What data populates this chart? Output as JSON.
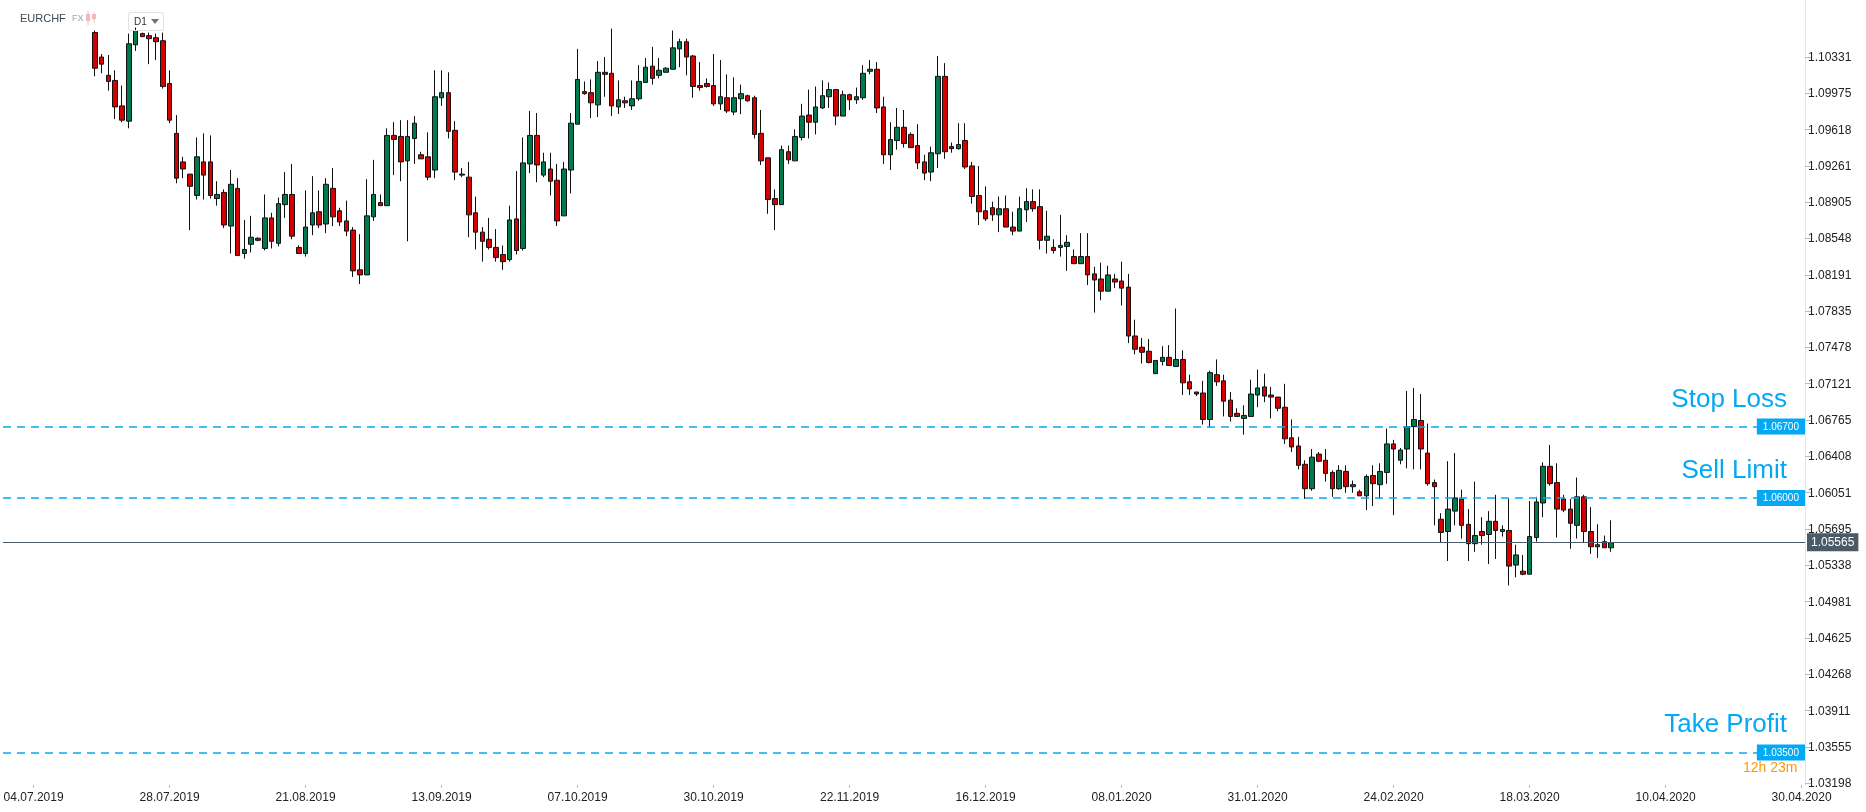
{
  "chart_data": {
    "type": "candlestick",
    "title": "EURCHF",
    "subtitle": "FX",
    "categories": [
      null,
      null,
      null,
      null,
      "04.07.2019",
      null,
      null,
      null,
      null,
      null,
      null,
      null,
      null,
      null,
      null,
      null,
      null,
      null,
      null,
      null,
      null,
      null,
      null,
      null,
      "28.07.2019",
      null,
      null,
      null,
      null,
      null,
      null,
      null,
      null,
      null,
      null,
      null,
      null,
      null,
      null,
      null,
      null,
      null,
      null,
      null,
      "21.08.2019",
      null,
      null,
      null,
      null,
      null,
      null,
      null,
      null,
      null,
      null,
      null,
      null,
      null,
      null,
      null,
      null,
      null,
      null,
      null,
      "13.09.2019",
      null,
      null,
      null,
      null,
      null,
      null,
      null,
      null,
      null,
      null,
      null,
      null,
      null,
      null,
      null,
      null,
      null,
      null,
      null,
      "07.10.2019",
      null,
      null,
      null,
      null,
      null,
      null,
      null,
      null,
      null,
      null,
      null,
      null,
      null,
      null,
      null,
      null,
      null,
      null,
      null,
      "30.10.2019",
      null,
      null,
      null,
      null,
      null,
      null,
      null,
      null,
      null,
      null,
      null,
      null,
      null,
      null,
      null,
      null,
      null,
      null,
      null,
      "22.11.2019",
      null,
      null,
      null,
      null,
      null,
      null,
      null,
      null,
      null,
      null,
      null,
      null,
      null,
      null,
      null,
      null,
      null,
      null,
      null,
      "16.12.2019",
      null,
      null,
      null,
      null,
      null,
      null,
      null,
      null,
      null,
      null,
      null,
      null,
      null,
      null,
      null,
      null,
      null,
      null,
      null,
      "08.01.2020",
      null,
      null,
      null,
      null,
      null,
      null,
      null,
      null,
      null,
      null,
      null,
      null,
      null,
      null,
      null,
      null,
      null,
      null,
      null,
      "31.01.2020",
      null,
      null,
      null,
      null,
      null,
      null,
      null,
      null,
      null,
      null,
      null,
      null,
      null,
      null,
      null,
      null,
      null,
      null,
      null,
      "24.02.2020",
      null,
      null,
      null,
      null,
      null,
      null,
      null,
      null,
      null,
      null,
      null,
      null,
      null,
      null,
      null,
      null,
      null,
      null,
      null,
      "18.03.2020",
      null,
      null,
      null,
      null,
      null,
      null,
      null,
      null,
      null,
      null,
      null,
      null,
      null,
      null,
      null,
      null,
      null,
      null,
      null,
      "10.04.2020",
      null,
      null,
      null,
      null,
      null,
      null,
      null,
      null,
      null,
      null,
      null,
      null,
      null,
      null,
      null,
      null,
      null,
      null,
      null,
      "30.04.2020"
    ],
    "ohlc": [
      null,
      null,
      null,
      null,
      null,
      null,
      null,
      null,
      null,
      null,
      null,
      null,
      null,
      [
        1.1057,
        1.1059,
        1.1014,
        1.1022
      ],
      [
        1.1033,
        1.1036,
        1.1017,
        1.1026
      ],
      [
        1.1015,
        1.1035,
        1.1,
        1.1009
      ],
      [
        1.101,
        1.102,
        1.0972,
        1.0984
      ],
      [
        1.0985,
        1.1005,
        1.0969,
        1.0971
      ],
      [
        1.097,
        1.1056,
        1.0963,
        1.1046
      ],
      [
        1.1045,
        1.1062,
        1.1039,
        1.1059
      ],
      [
        1.1056,
        1.1057,
        1.1053,
        1.1053
      ],
      [
        1.1054,
        1.1057,
        1.1026,
        1.1051
      ],
      [
        1.1052,
        1.1056,
        1.103,
        1.1048
      ],
      [
        1.1049,
        1.1057,
        1.1002,
        1.1004
      ],
      [
        1.1007,
        1.102,
        1.0968,
        1.0971
      ],
      [
        1.0958,
        1.0976,
        1.0909,
        1.0914
      ],
      [
        1.093,
        1.0935,
        1.0914,
        1.0923
      ],
      [
        1.0918,
        1.0918,
        1.0863,
        1.0906
      ],
      [
        1.0897,
        1.0954,
        1.0893,
        1.0935
      ],
      [
        1.093,
        1.0958,
        1.0893,
        1.0917
      ],
      [
        1.093,
        1.0956,
        1.0894,
        1.0897
      ],
      [
        1.0894,
        1.0911,
        1.0887,
        1.0898
      ],
      [
        1.09,
        1.0903,
        1.0865,
        1.0868
      ],
      [
        1.0867,
        1.0922,
        1.084,
        1.0908
      ],
      [
        1.0904,
        1.0914,
        1.0838,
        1.0838
      ],
      [
        1.084,
        1.0873,
        1.0835,
        1.0844
      ],
      [
        1.0849,
        1.0877,
        1.0841,
        1.0856
      ],
      [
        1.0855,
        1.0856,
        1.0852,
        1.0853
      ],
      [
        1.0845,
        1.0898,
        1.0843,
        1.0875
      ],
      [
        1.0875,
        1.088,
        1.0845,
        1.0852
      ],
      [
        1.085,
        1.0895,
        1.0847,
        1.0889
      ],
      [
        1.0888,
        1.092,
        1.0875,
        1.0898
      ],
      [
        1.0898,
        1.0928,
        1.0854,
        1.0857
      ],
      [
        1.0846,
        1.0848,
        1.084,
        1.084
      ],
      [
        1.084,
        1.0902,
        1.0837,
        1.0866
      ],
      [
        1.0868,
        1.0916,
        1.0858,
        1.088
      ],
      [
        1.0881,
        1.0902,
        1.0865,
        1.0868
      ],
      [
        1.0869,
        1.0914,
        1.086,
        1.0908
      ],
      [
        1.0904,
        1.0924,
        1.0867,
        1.0876
      ],
      [
        1.0882,
        1.0885,
        1.0867,
        1.0871
      ],
      [
        1.0872,
        1.0892,
        1.0857,
        1.0862
      ],
      [
        1.0863,
        1.0866,
        1.0817,
        1.0823
      ],
      [
        1.0824,
        1.0859,
        1.081,
        1.0819
      ],
      [
        1.0819,
        1.0913,
        1.0819,
        1.0877
      ],
      [
        1.0876,
        1.0932,
        1.0872,
        1.0898
      ],
      [
        1.089,
        1.0898,
        1.0887,
        1.0887
      ],
      [
        1.0887,
        1.0963,
        1.0887,
        1.0956
      ],
      [
        1.0956,
        1.0969,
        1.0917,
        1.0952
      ],
      [
        1.0955,
        1.0971,
        1.0911,
        1.093
      ],
      [
        1.0931,
        1.0971,
        1.0852,
        1.0955
      ],
      [
        1.0953,
        1.0975,
        1.0928,
        1.0968
      ],
      [
        1.0937,
        1.094,
        1.0933,
        1.0933
      ],
      [
        1.0935,
        1.0959,
        1.0912,
        1.0915
      ],
      [
        1.0922,
        1.102,
        1.0914,
        1.0994
      ],
      [
        1.0993,
        1.102,
        1.0985,
        1.0998
      ],
      [
        1.0998,
        1.1018,
        1.0953,
        1.096
      ],
      [
        1.0961,
        1.097,
        1.0912,
        1.092
      ],
      [
        1.0917,
        1.0924,
        1.0915,
        1.0918
      ],
      [
        1.0915,
        1.093,
        1.0856,
        1.0878
      ],
      [
        1.088,
        1.0896,
        1.0844,
        1.0861
      ],
      [
        1.0861,
        1.0866,
        1.0832,
        1.0852
      ],
      [
        1.0854,
        1.0875,
        1.0844,
        1.0846
      ],
      [
        1.0846,
        1.0864,
        1.0832,
        1.0836
      ],
      [
        1.0839,
        1.0848,
        1.0824,
        1.0832
      ],
      [
        1.0834,
        1.0887,
        1.0832,
        1.0873
      ],
      [
        1.0874,
        1.0921,
        1.0839,
        1.0843
      ],
      [
        1.0845,
        1.0954,
        1.0843,
        1.0929
      ],
      [
        1.0928,
        1.098,
        1.0919,
        1.0956
      ],
      [
        1.0956,
        1.0978,
        1.091,
        1.0927
      ],
      [
        1.0917,
        1.0939,
        1.0915,
        1.093
      ],
      [
        1.0923,
        1.0939,
        1.0897,
        1.0911
      ],
      [
        1.0912,
        1.0928,
        1.0867,
        1.0872
      ],
      [
        1.0877,
        1.093,
        1.0877,
        1.0923
      ],
      [
        1.0922,
        1.0978,
        1.0899,
        1.0968
      ],
      [
        1.0967,
        1.1041,
        1.0967,
        1.1011
      ],
      [
        1.0999,
        1.1009,
        1.0996,
        1.0997
      ],
      [
        1.0998,
        1.1011,
        1.0973,
        1.0988
      ],
      [
        1.0986,
        1.1029,
        1.0974,
        1.1018
      ],
      [
        1.1018,
        1.1033,
        1.0994,
        1.1016
      ],
      [
        1.1017,
        1.1061,
        1.0975,
        1.0985
      ],
      [
        1.0984,
        1.101,
        1.0977,
        1.0991
      ],
      [
        1.099,
        1.0994,
        1.0983,
        1.0988
      ],
      [
        1.0985,
        1.101,
        1.0981,
        1.0992
      ],
      [
        1.0992,
        1.1025,
        1.099,
        1.1009
      ],
      [
        1.1008,
        1.1032,
        1.1008,
        1.1023
      ],
      [
        1.1024,
        1.1043,
        1.1006,
        1.1012
      ],
      [
        1.1015,
        1.1032,
        1.1012,
        1.102
      ],
      [
        1.1018,
        1.1023,
        1.1018,
        1.1022
      ],
      [
        1.1021,
        1.1059,
        1.1021,
        1.1042
      ],
      [
        1.1041,
        1.1051,
        1.1023,
        1.1048
      ],
      [
        1.1048,
        1.1051,
        1.1015,
        1.1033
      ],
      [
        1.1034,
        1.1035,
        1.0993,
        1.1004
      ],
      [
        1.1005,
        1.1028,
        1.1,
        1.1003
      ],
      [
        1.1007,
        1.1012,
        1.1003,
        1.1004
      ],
      [
        1.1005,
        1.1036,
        1.0985,
        1.0987
      ],
      [
        1.0987,
        1.103,
        1.0981,
        1.0994
      ],
      [
        1.0993,
        1.1016,
        1.0978,
        1.098
      ],
      [
        1.0979,
        1.1013,
        1.0976,
        1.0993
      ],
      [
        1.0992,
        1.1006,
        1.0977,
        1.0997
      ],
      [
        1.0995,
        1.0996,
        1.0989,
        1.099
      ],
      [
        1.0993,
        1.0995,
        1.0953,
        1.0957
      ],
      [
        1.0958,
        1.0981,
        1.0927,
        1.0931
      ],
      [
        1.0934,
        1.0934,
        1.0879,
        1.0893
      ],
      [
        1.0894,
        1.0903,
        1.0863,
        1.0888
      ],
      [
        1.0888,
        1.0946,
        1.0888,
        1.0942
      ],
      [
        1.094,
        1.0946,
        1.0928,
        1.0932
      ],
      [
        1.0931,
        1.0962,
        1.0931,
        1.0955
      ],
      [
        1.0954,
        1.0987,
        1.0951,
        1.0975
      ],
      [
        1.0976,
        1.1001,
        1.0953,
        1.0969
      ],
      [
        1.0969,
        1.1004,
        1.0957,
        1.0984
      ],
      [
        1.0983,
        1.101,
        1.0982,
        1.0995
      ],
      [
        1.0994,
        1.1008,
        1.0983,
        1.1001
      ],
      [
        1.1001,
        1.1001,
        1.0966,
        1.0975
      ],
      [
        1.0975,
        1.1,
        1.0975,
        1.0996
      ],
      [
        1.0996,
        1.0997,
        1.0981,
        1.0991
      ],
      [
        1.0991,
        1.1003,
        1.0987,
        1.0994
      ],
      [
        1.0993,
        1.1025,
        1.0991,
        1.1017
      ],
      [
        1.1019,
        1.103,
        1.1016,
        1.1021
      ],
      [
        1.1021,
        1.1028,
        1.0978,
        1.0983
      ],
      [
        1.0984,
        1.0994,
        1.0928,
        1.0937
      ],
      [
        1.0937,
        1.0969,
        1.0922,
        1.0952
      ],
      [
        1.0951,
        1.0983,
        1.0942,
        1.0964
      ],
      [
        1.0964,
        1.0981,
        1.0944,
        1.0948
      ],
      [
        1.0957,
        1.0959,
        1.0944,
        1.0944
      ],
      [
        1.0946,
        1.0967,
        1.0923,
        1.0929
      ],
      [
        1.093,
        1.0937,
        1.0912,
        1.0919
      ],
      [
        1.092,
        1.0945,
        1.0911,
        1.0939
      ],
      [
        1.0938,
        1.1034,
        1.0924,
        1.1014
      ],
      [
        1.1014,
        1.1027,
        1.0933,
        1.094
      ],
      [
        1.0945,
        1.0949,
        1.0939,
        1.0943
      ],
      [
        1.0943,
        1.0968,
        1.0942,
        1.0947
      ],
      [
        1.0951,
        1.0968,
        1.0923,
        1.0925
      ],
      [
        1.0926,
        1.093,
        1.0889,
        1.0896
      ],
      [
        1.0897,
        1.0926,
        1.0868,
        1.0881
      ],
      [
        1.0882,
        1.0906,
        1.0872,
        1.0874
      ],
      [
        1.0885,
        1.0891,
        1.0872,
        1.0878
      ],
      [
        1.0878,
        1.0896,
        1.0861,
        1.0884
      ],
      [
        1.0884,
        1.0897,
        1.0866,
        1.0866
      ],
      [
        1.0866,
        1.0881,
        1.0858,
        1.0862
      ],
      [
        1.0862,
        1.0896,
        1.0862,
        1.0884
      ],
      [
        1.0883,
        1.0904,
        1.0871,
        1.0891
      ],
      [
        1.0891,
        1.0903,
        1.0881,
        1.0884
      ],
      [
        1.0886,
        1.0903,
        1.0844,
        1.0853
      ],
      [
        1.0853,
        1.0882,
        1.084,
        1.0857
      ],
      [
        1.0846,
        1.0854,
        1.084,
        1.0843
      ],
      [
        1.0846,
        1.0878,
        1.0837,
        1.0848
      ],
      [
        1.0847,
        1.0858,
        1.0823,
        1.0851
      ],
      [
        1.0837,
        1.0844,
        1.083,
        1.083
      ],
      [
        1.083,
        1.086,
        1.083,
        1.0837
      ],
      [
        1.0837,
        1.086,
        1.0809,
        1.0819
      ],
      [
        1.082,
        1.0827,
        1.0782,
        1.0814
      ],
      [
        1.0815,
        1.0831,
        1.0794,
        1.0803
      ],
      [
        1.0803,
        1.0828,
        1.0803,
        1.0819
      ],
      [
        1.0815,
        1.082,
        1.0806,
        1.0812
      ],
      [
        1.0813,
        1.0832,
        1.0789,
        1.0806
      ],
      [
        1.0807,
        1.082,
        1.0752,
        1.0759
      ],
      [
        1.0759,
        1.0775,
        1.0741,
        1.0746
      ],
      [
        1.0748,
        1.0757,
        1.0732,
        1.0743
      ],
      [
        1.0744,
        1.0756,
        1.0732,
        1.0733
      ],
      [
        1.0722,
        1.0735,
        1.0722,
        1.0735
      ],
      [
        1.0734,
        1.0749,
        1.073,
        1.0738
      ],
      [
        1.0738,
        1.075,
        1.073,
        1.073
      ],
      [
        1.0729,
        1.0786,
        1.0729,
        1.0736
      ],
      [
        1.0736,
        1.0745,
        1.0701,
        1.0713
      ],
      [
        1.0714,
        1.0721,
        1.0701,
        1.0707
      ],
      [
        1.0704,
        1.0704,
        1.07,
        1.0702
      ],
      [
        1.0703,
        1.0715,
        1.0672,
        1.0677
      ],
      [
        1.0677,
        1.0725,
        1.0669,
        1.0723
      ],
      [
        1.0721,
        1.0736,
        1.071,
        1.0714
      ],
      [
        1.0715,
        1.0721,
        1.068,
        1.0695
      ],
      [
        1.0696,
        1.0704,
        1.0675,
        1.068
      ],
      [
        1.0683,
        1.0688,
        1.068,
        1.068
      ],
      [
        1.0678,
        1.0691,
        1.0662,
        1.0681
      ],
      [
        1.068,
        1.0716,
        1.068,
        1.0702
      ],
      [
        1.0701,
        1.0726,
        1.0689,
        1.0708
      ],
      [
        1.0709,
        1.0722,
        1.0694,
        1.07
      ],
      [
        1.0701,
        1.0709,
        1.0678,
        1.0699
      ],
      [
        1.0699,
        1.0699,
        1.0685,
        1.0688
      ],
      [
        1.0689,
        1.0712,
        1.0653,
        1.0658
      ],
      [
        1.0659,
        1.0677,
        1.0645,
        1.065
      ],
      [
        1.0651,
        1.066,
        1.0628,
        1.0632
      ],
      [
        1.0633,
        1.0637,
        1.0599,
        1.0609
      ],
      [
        1.0609,
        1.0648,
        1.0607,
        1.064
      ],
      [
        1.0643,
        1.0645,
        1.0635,
        1.0636
      ],
      [
        1.0637,
        1.0648,
        1.0616,
        1.0624
      ],
      [
        1.0625,
        1.0627,
        1.0601,
        1.0609
      ],
      [
        1.0609,
        1.0632,
        1.0608,
        1.0627
      ],
      [
        1.0626,
        1.0632,
        1.0605,
        1.0611
      ],
      [
        1.0611,
        1.0617,
        1.0605,
        1.0613
      ],
      [
        1.0606,
        1.0608,
        1.0602,
        1.0602
      ],
      [
        1.0602,
        1.0623,
        1.0588,
        1.0621
      ],
      [
        1.0622,
        1.0632,
        1.0592,
        1.0614
      ],
      [
        1.0613,
        1.0634,
        1.0599,
        1.0626
      ],
      [
        1.0625,
        1.0668,
        1.0614,
        1.0653
      ],
      [
        1.0653,
        1.0657,
        1.0583,
        1.0648
      ],
      [
        1.0637,
        1.0649,
        1.0633,
        1.0647
      ],
      [
        1.0648,
        1.0705,
        1.0629,
        1.067
      ],
      [
        1.067,
        1.0708,
        1.0628,
        1.0677
      ],
      [
        1.0676,
        1.0702,
        1.0628,
        1.0648
      ],
      [
        1.0644,
        1.0673,
        1.0612,
        1.0614
      ],
      [
        1.0615,
        1.0618,
        1.0573,
        1.0611
      ],
      [
        1.0579,
        1.0585,
        1.0556,
        1.0566
      ],
      [
        1.0567,
        1.0636,
        1.0538,
        1.0589
      ],
      [
        1.0587,
        1.0644,
        1.0573,
        1.06
      ],
      [
        1.0599,
        1.0608,
        1.056,
        1.0573
      ],
      [
        1.0574,
        1.0589,
        1.0538,
        1.0555
      ],
      [
        1.0555,
        1.0616,
        1.0547,
        1.0563
      ],
      [
        1.0567,
        1.0581,
        1.0554,
        1.0563
      ],
      [
        1.0564,
        1.0587,
        1.0535,
        1.0577
      ],
      [
        1.0577,
        1.0603,
        1.054,
        1.0568
      ],
      [
        1.0567,
        1.0573,
        1.0562,
        1.0569
      ],
      [
        1.0568,
        1.0599,
        1.0514,
        1.0533
      ],
      [
        1.0534,
        1.0554,
        1.0522,
        1.0544
      ],
      [
        1.0528,
        1.0544,
        1.0524,
        1.0525
      ],
      [
        1.0525,
        1.0597,
        1.0525,
        1.0562
      ],
      [
        1.0561,
        1.0601,
        1.0557,
        1.0596
      ],
      [
        1.0595,
        1.0635,
        1.0581,
        1.0631
      ],
      [
        1.0631,
        1.0652,
        1.0612,
        1.0614
      ],
      [
        1.0615,
        1.0634,
        1.0561,
        1.0589
      ],
      [
        1.0599,
        1.0603,
        1.0586,
        1.0588
      ],
      [
        1.0589,
        1.0599,
        1.055,
        1.0575
      ],
      [
        1.0573,
        1.062,
        1.056,
        1.0601
      ],
      [
        1.0601,
        1.0603,
        1.0556,
        1.0567
      ],
      [
        1.0567,
        1.0591,
        1.0545,
        1.0552
      ],
      [
        1.0552,
        1.0574,
        1.0541,
        1.0554
      ],
      [
        1.0557,
        1.0563,
        1.0551,
        1.0551
      ],
      [
        1.0551,
        1.0578,
        1.0547,
        1.0556
      ],
      null,
      null,
      null,
      null,
      null,
      null,
      null,
      null,
      null,
      null,
      null,
      null,
      null,
      null,
      null,
      null,
      null,
      null,
      null,
      null,
      null,
      null,
      null,
      null,
      null,
      null,
      null,
      null
    ],
    "ylim": [
      1.0318,
      1.1089
    ],
    "yticks": [
      1.10331,
      1.09975,
      1.09618,
      1.09261,
      1.08905,
      1.08548,
      1.08191,
      1.07835,
      1.07478,
      1.07121,
      1.06765,
      1.06408,
      1.06051,
      1.05695,
      1.05338,
      1.04981,
      1.04625,
      1.04268,
      1.03911,
      1.03555,
      1.03198
    ],
    "grid": false,
    "ref_lines": [
      {
        "axis": "y",
        "value": 1.067,
        "label": "1.06700",
        "color": "#03a9f4",
        "line_style": "dashed"
      },
      {
        "axis": "y",
        "value": 1.06,
        "label": "1.06000",
        "color": "#03a9f4",
        "line_style": "dashed"
      },
      {
        "axis": "y",
        "value": 1.035,
        "label": "1.03500",
        "color": "#03a9f4",
        "line_style": "dashed"
      },
      {
        "axis": "y",
        "value": 1.05565,
        "label": "1.05565",
        "color": "#4a5a66",
        "line_style": "solid"
      }
    ],
    "annotations": [
      {
        "text": "Stop Loss",
        "y": 1.067
      },
      {
        "text": "Sell Limit",
        "y": 1.06
      },
      {
        "text": "Take Profit",
        "y": 1.035
      },
      "D1",
      "12h 23m"
    ]
  }
}
